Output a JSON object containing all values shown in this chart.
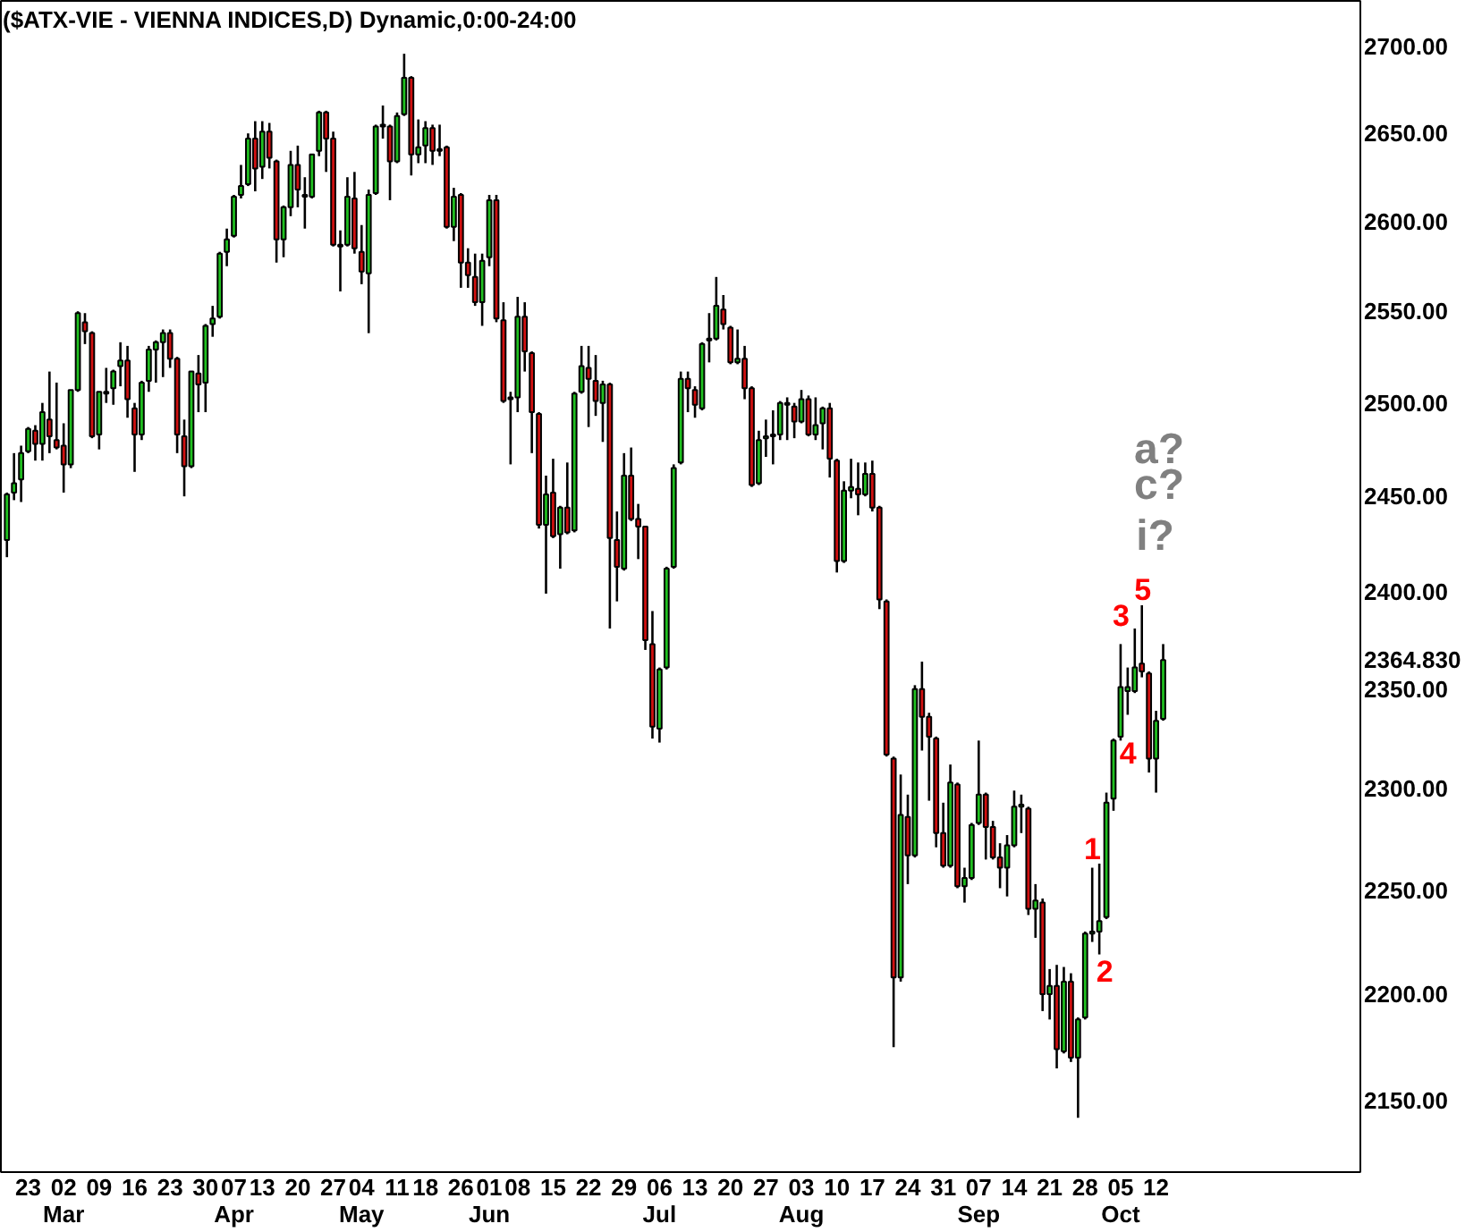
{
  "chart_data": {
    "type": "candlestick",
    "title": "($ATX-VIE - VIENNA INDICES,D) Dynamic,0:00-24:00",
    "categories": [
      null,
      null,
      null,
      "23",
      null,
      null,
      null,
      null,
      "02\nMar",
      null,
      null,
      null,
      null,
      "09",
      null,
      null,
      null,
      null,
      "16",
      null,
      null,
      null,
      null,
      "23",
      null,
      null,
      null,
      null,
      "30",
      null,
      null,
      null,
      "07\nApr",
      null,
      null,
      null,
      "13",
      null,
      null,
      null,
      null,
      "20",
      null,
      null,
      null,
      null,
      "27",
      null,
      null,
      null,
      "04\nMay",
      null,
      null,
      null,
      null,
      "11",
      null,
      null,
      null,
      "18",
      null,
      null,
      null,
      null,
      "26",
      null,
      null,
      null,
      "01\nJun",
      null,
      null,
      null,
      "08",
      null,
      null,
      null,
      null,
      "15",
      null,
      null,
      null,
      null,
      "22",
      null,
      null,
      null,
      null,
      "29",
      null,
      null,
      null,
      null,
      "06\nJul",
      null,
      null,
      null,
      null,
      "13",
      null,
      null,
      null,
      null,
      "20",
      null,
      null,
      null,
      null,
      "27",
      null,
      null,
      null,
      null,
      "03\nAug",
      null,
      null,
      null,
      null,
      "10",
      null,
      null,
      null,
      null,
      "17",
      null,
      null,
      null,
      null,
      "24",
      null,
      null,
      null,
      null,
      "31",
      null,
      null,
      null,
      null,
      "07\nSep",
      null,
      null,
      null,
      null,
      "14",
      null,
      null,
      null,
      null,
      "21",
      null,
      null,
      null,
      null,
      "28",
      null,
      null,
      null,
      null,
      "05\nOct",
      null,
      null,
      null,
      null,
      "12",
      null,
      null,
      null,
      null,
      null,
      null,
      null,
      null,
      null,
      null,
      null,
      null,
      null,
      null,
      null,
      null,
      null,
      null,
      null,
      null,
      null,
      null,
      null,
      null,
      null,
      null,
      null,
      null
    ],
    "ohlc": [
      [
        2427,
        2452,
        2418,
        2451
      ],
      [
        2452,
        2473,
        2448,
        2457
      ],
      [
        2459,
        2477,
        2447,
        2473
      ],
      [
        2474,
        2487,
        2473,
        2486
      ],
      [
        2485,
        2488,
        2469,
        2478
      ],
      [
        2478,
        2500,
        2469,
        2495
      ],
      [
        2491,
        2517,
        2473,
        2482
      ],
      [
        2480,
        2511,
        2475,
        2476
      ],
      [
        2477,
        2489,
        2452,
        2467
      ],
      [
        2467,
        2507,
        2465,
        2507
      ],
      [
        2507,
        2550,
        2506,
        2549
      ],
      [
        2544,
        2549,
        2532,
        2539
      ],
      [
        2538,
        2539,
        2481,
        2482
      ],
      [
        2483,
        2506,
        2475,
        2506
      ],
      [
        2505,
        2519,
        2500,
        2506
      ],
      [
        2508,
        2518,
        2499,
        2517
      ],
      [
        2520,
        2533,
        2509,
        2523
      ],
      [
        2523,
        2531,
        2492,
        2502
      ],
      [
        2497,
        2500,
        2463,
        2483
      ],
      [
        2483,
        2512,
        2480,
        2511
      ],
      [
        2512,
        2531,
        2506,
        2529
      ],
      [
        2529,
        2534,
        2511,
        2533
      ],
      [
        2533,
        2540,
        2514,
        2538
      ],
      [
        2538,
        2540,
        2519,
        2524
      ],
      [
        2524,
        2525,
        2473,
        2483
      ],
      [
        2482,
        2491,
        2450,
        2466
      ],
      [
        2466,
        2517,
        2465,
        2517
      ],
      [
        2516,
        2526,
        2495,
        2510
      ],
      [
        2511,
        2543,
        2495,
        2542
      ],
      [
        2543,
        2553,
        2536,
        2546
      ],
      [
        2547,
        2583,
        2546,
        2582
      ],
      [
        2583,
        2596,
        2575,
        2590
      ],
      [
        2592,
        2615,
        2591,
        2614
      ],
      [
        2615,
        2632,
        2613,
        2620
      ],
      [
        2621,
        2650,
        2620,
        2647
      ],
      [
        2647,
        2657,
        2617,
        2630
      ],
      [
        2631,
        2657,
        2624,
        2651
      ],
      [
        2651,
        2656,
        2630,
        2636
      ],
      [
        2634,
        2635,
        2577,
        2590
      ],
      [
        2590,
        2609,
        2580,
        2608
      ],
      [
        2608,
        2640,
        2603,
        2632
      ],
      [
        2632,
        2643,
        2608,
        2618
      ],
      [
        2615,
        2625,
        2596,
        2614
      ],
      [
        2614,
        2638,
        2613,
        2638
      ],
      [
        2640,
        2663,
        2637,
        2662
      ],
      [
        2662,
        2663,
        2628,
        2647
      ],
      [
        2647,
        2651,
        2586,
        2587
      ],
      [
        2587,
        2595,
        2561,
        2586
      ],
      [
        2587,
        2625,
        2586,
        2614
      ],
      [
        2613,
        2628,
        2582,
        2585
      ],
      [
        2583,
        2598,
        2565,
        2572
      ],
      [
        2571,
        2618,
        2538,
        2615
      ],
      [
        2616,
        2655,
        2615,
        2654
      ],
      [
        2654,
        2666,
        2647,
        2655
      ],
      [
        2654,
        2655,
        2612,
        2634
      ],
      [
        2634,
        2662,
        2633,
        2660
      ],
      [
        2661,
        2696,
        2660,
        2682
      ],
      [
        2682,
        2683,
        2626,
        2638
      ],
      [
        2638,
        2658,
        2633,
        2642
      ],
      [
        2643,
        2657,
        2633,
        2653
      ],
      [
        2653,
        2655,
        2632,
        2640
      ],
      [
        2641,
        2655,
        2637,
        2640
      ],
      [
        2642,
        2643,
        2596,
        2597
      ],
      [
        2597,
        2619,
        2589,
        2614
      ],
      [
        2615,
        2616,
        2563,
        2577
      ],
      [
        2577,
        2585,
        2563,
        2570
      ],
      [
        2569,
        2582,
        2553,
        2555
      ],
      [
        2555,
        2582,
        2542,
        2578
      ],
      [
        2580,
        2615,
        2575,
        2612
      ],
      [
        2612,
        2615,
        2544,
        2546
      ],
      [
        2545,
        2555,
        2500,
        2501
      ],
      [
        2503,
        2506,
        2467,
        2502
      ],
      [
        2503,
        2558,
        2495,
        2547
      ],
      [
        2547,
        2555,
        2517,
        2528
      ],
      [
        2527,
        2528,
        2473,
        2495
      ],
      [
        2494,
        2495,
        2433,
        2435
      ],
      [
        2435,
        2461,
        2399,
        2451
      ],
      [
        2452,
        2470,
        2428,
        2429
      ],
      [
        2430,
        2445,
        2412,
        2444
      ],
      [
        2444,
        2468,
        2430,
        2431
      ],
      [
        2432,
        2506,
        2431,
        2505
      ],
      [
        2506,
        2531,
        2505,
        2520
      ],
      [
        2519,
        2531,
        2487,
        2513
      ],
      [
        2512,
        2526,
        2493,
        2501
      ],
      [
        2500,
        2512,
        2479,
        2510
      ],
      [
        2510,
        2511,
        2381,
        2428
      ],
      [
        2427,
        2442,
        2395,
        2413
      ],
      [
        2412,
        2473,
        2411,
        2461
      ],
      [
        2461,
        2476,
        2437,
        2438
      ],
      [
        2438,
        2446,
        2417,
        2434
      ],
      [
        2434,
        2434,
        2370,
        2375
      ],
      [
        2373,
        2390,
        2325,
        2331
      ],
      [
        2330,
        2361,
        2323,
        2360
      ],
      [
        2361,
        2413,
        2360,
        2412
      ],
      [
        2413,
        2467,
        2412,
        2465
      ],
      [
        2468,
        2517,
        2467,
        2513
      ],
      [
        2513,
        2517,
        2495,
        2508
      ],
      [
        2507,
        2509,
        2492,
        2499
      ],
      [
        2497,
        2533,
        2496,
        2532
      ],
      [
        2534,
        2549,
        2522,
        2535
      ],
      [
        2535,
        2569,
        2534,
        2553
      ],
      [
        2551,
        2559,
        2540,
        2543
      ],
      [
        2541,
        2542,
        2521,
        2522
      ],
      [
        2522,
        2540,
        2521,
        2524
      ],
      [
        2524,
        2531,
        2502,
        2508
      ],
      [
        2508,
        2509,
        2455,
        2456
      ],
      [
        2457,
        2485,
        2456,
        2480
      ],
      [
        2481,
        2491,
        2471,
        2482
      ],
      [
        2482,
        2496,
        2467,
        2483
      ],
      [
        2483,
        2501,
        2480,
        2500
      ],
      [
        2500,
        2503,
        2480,
        2499
      ],
      [
        2498,
        2500,
        2481,
        2490
      ],
      [
        2490,
        2507,
        2489,
        2502
      ],
      [
        2502,
        2504,
        2482,
        2483
      ],
      [
        2483,
        2503,
        2480,
        2488
      ],
      [
        2489,
        2498,
        2475,
        2497
      ],
      [
        2497,
        2500,
        2460,
        2470
      ],
      [
        2469,
        2470,
        2410,
        2416
      ],
      [
        2416,
        2458,
        2415,
        2453
      ],
      [
        2453,
        2470,
        2449,
        2455
      ],
      [
        2454,
        2468,
        2440,
        2451
      ],
      [
        2451,
        2468,
        2450,
        2462
      ],
      [
        2462,
        2469,
        2442,
        2444
      ],
      [
        2444,
        2445,
        2391,
        2396
      ],
      [
        2395,
        2396,
        2316,
        2317
      ],
      [
        2315,
        2316,
        2175,
        2208
      ],
      [
        2208,
        2307,
        2206,
        2287
      ],
      [
        2286,
        2297,
        2253,
        2267
      ],
      [
        2267,
        2352,
        2266,
        2350
      ],
      [
        2350,
        2364,
        2319,
        2336
      ],
      [
        2336,
        2338,
        2294,
        2326
      ],
      [
        2325,
        2326,
        2271,
        2278
      ],
      [
        2278,
        2293,
        2261,
        2262
      ],
      [
        2262,
        2312,
        2261,
        2303
      ],
      [
        2302,
        2303,
        2251,
        2252
      ],
      [
        2252,
        2261,
        2244,
        2256
      ],
      [
        2256,
        2283,
        2255,
        2282
      ],
      [
        2283,
        2324,
        2282,
        2297
      ],
      [
        2297,
        2298,
        2265,
        2281
      ],
      [
        2281,
        2284,
        2265,
        2266
      ],
      [
        2266,
        2273,
        2251,
        2261
      ],
      [
        2261,
        2277,
        2247,
        2272
      ],
      [
        2272,
        2299,
        2271,
        2291
      ],
      [
        2291,
        2297,
        2278,
        2292
      ],
      [
        2290,
        2291,
        2238,
        2241
      ],
      [
        2241,
        2253,
        2227,
        2245
      ],
      [
        2244,
        2246,
        2192,
        2200
      ],
      [
        2200,
        2212,
        2188,
        2204
      ],
      [
        2204,
        2214,
        2165,
        2174
      ],
      [
        2173,
        2213,
        2172,
        2206
      ],
      [
        2206,
        2210,
        2168,
        2170
      ],
      [
        2170,
        2189,
        2142,
        2188
      ],
      [
        2189,
        2230,
        2188,
        2229
      ],
      [
        2229,
        2261,
        2225,
        2230
      ],
      [
        2230,
        2263,
        2219,
        2235
      ],
      [
        2237,
        2298,
        2236,
        2293
      ],
      [
        2295,
        2325,
        2289,
        2324
      ],
      [
        2326,
        2373,
        2324,
        2351
      ],
      [
        2349,
        2361,
        2337,
        2351
      ],
      [
        2349,
        2381,
        2348,
        2361
      ],
      [
        2363,
        2393,
        2356,
        2359
      ],
      [
        2358,
        2359,
        2308,
        2315
      ],
      [
        2315,
        2339,
        2298,
        2334
      ],
      [
        2335,
        2373,
        2334,
        2364.83
      ],
      null,
      null,
      null,
      null,
      null,
      null,
      null,
      null,
      null,
      null,
      null,
      null,
      null,
      null,
      null,
      null,
      null,
      null,
      null,
      null,
      null,
      null,
      null,
      null,
      null,
      null,
      null
    ],
    "colors": [
      "#20c020",
      "#20c020",
      "#20c020",
      "#20c020",
      "#d01010",
      "#20c020",
      "#d01010",
      "#d01010",
      "#d01010",
      "#20c020",
      "#20c020",
      "#d01010",
      "#d01010",
      "#20c020",
      "#20c020",
      "#20c020",
      "#20c020",
      "#d01010",
      "#d01010",
      "#20c020",
      "#20c020",
      "#20c020",
      "#20c020",
      "#d01010",
      "#d01010",
      "#d01010",
      "#20c020",
      "#d01010",
      "#20c020",
      "#20c020",
      "#20c020",
      "#20c020",
      "#20c020",
      "#20c020",
      "#20c020",
      "#d01010",
      "#20c020",
      "#d01010",
      "#d01010",
      "#20c020",
      "#20c020",
      "#d01010",
      "#d01010",
      "#20c020",
      "#20c020",
      "#d01010",
      "#d01010",
      "#d01010",
      "#20c020",
      "#d01010",
      "#d01010",
      "#20c020",
      "#20c020",
      "#20c020",
      "#d01010",
      "#20c020",
      "#20c020",
      "#d01010",
      "#20c020",
      "#20c020",
      "#d01010",
      "#d01010",
      "#d01010",
      "#20c020",
      "#d01010",
      "#d01010",
      "#d01010",
      "#20c020",
      "#20c020",
      "#d01010",
      "#d01010",
      "#d01010",
      "#20c020",
      "#d01010",
      "#d01010",
      "#d01010",
      "#20c020",
      "#d01010",
      "#20c020",
      "#d01010",
      "#20c020",
      "#20c020",
      "#d01010",
      "#d01010",
      "#20c020",
      "#d01010",
      "#d01010",
      "#20c020",
      "#d01010",
      "#d01010",
      "#d01010",
      "#d01010",
      "#20c020",
      "#20c020",
      "#20c020",
      "#20c020",
      "#d01010",
      "#d01010",
      "#20c020",
      "#20c020",
      "#20c020",
      "#d01010",
      "#d01010",
      "#20c020",
      "#d01010",
      "#d01010",
      "#20c020",
      "#20c020",
      "#20c020",
      "#20c020",
      "#d01010",
      "#d01010",
      "#20c020",
      "#d01010",
      "#20c020",
      "#20c020",
      "#d01010",
      "#d01010",
      "#20c020",
      "#20c020",
      "#d01010",
      "#20c020",
      "#d01010",
      "#d01010",
      "#d01010",
      "#d01010",
      "#20c020",
      "#d01010",
      "#20c020",
      "#d01010",
      "#d01010",
      "#d01010",
      "#d01010",
      "#20c020",
      "#d01010",
      "#20c020",
      "#20c020",
      "#20c020",
      "#d01010",
      "#d01010",
      "#d01010",
      "#20c020",
      "#20c020",
      "#20c020",
      "#d01010",
      "#20c020",
      "#d01010",
      "#20c020",
      "#d01010",
      "#20c020",
      "#d01010",
      "#20c020",
      "#20c020",
      "#20c020",
      "#20c020",
      "#20c020",
      "#20c020",
      "#20c020",
      "#20c020",
      "#20c020",
      "#d01010",
      "#d01010",
      "#20c020",
      "#20c020",
      null,
      null,
      null,
      null,
      null,
      null,
      null,
      null,
      null,
      null,
      null,
      null,
      null,
      null,
      null,
      null,
      null,
      null,
      null,
      null,
      null,
      null,
      null,
      null,
      null,
      null,
      null
    ],
    "ylim": [
      2117,
      2727
    ],
    "log": "y",
    "yticks": [
      {
        "value": 2150,
        "label": "2150.00"
      },
      {
        "value": 2200,
        "label": "2200.00"
      },
      {
        "value": 2250,
        "label": "2250.00"
      },
      {
        "value": 2300,
        "label": "2300.00"
      },
      {
        "value": 2350,
        "label": "2350.00"
      },
      {
        "value": 2364.83,
        "label": "2364.830"
      },
      {
        "value": 2400,
        "label": "2400.00"
      },
      {
        "value": 2450,
        "label": "2450.00"
      },
      {
        "value": 2500,
        "label": "2500.00"
      },
      {
        "value": 2550,
        "label": "2550.00"
      },
      {
        "value": 2600,
        "label": "2600.00"
      },
      {
        "value": 2650,
        "label": "2650.00"
      },
      {
        "value": 2700,
        "label": "2700.00"
      }
    ],
    "annotations": [
      {
        "text": "1",
        "y": 2261
      },
      {
        "text": "2",
        "y": 2219
      },
      {
        "text": "3",
        "y": 2373
      },
      {
        "text": "4",
        "y": 2324
      },
      {
        "text": "5",
        "y": 2393
      },
      "a?",
      "c?",
      "i?"
    ]
  }
}
